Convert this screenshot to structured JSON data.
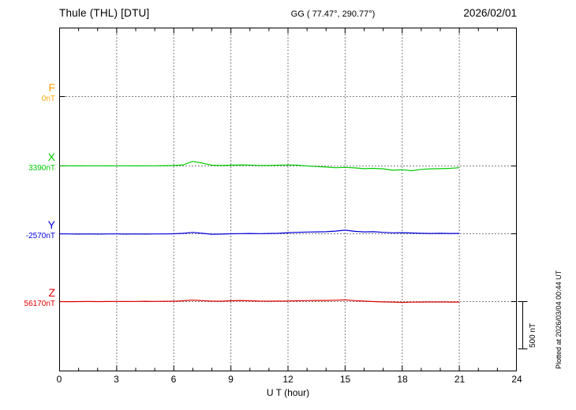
{
  "header": {
    "station": "Thule (THL)  [DTU]",
    "coords": "GG ( 77.47°, 290.77°)",
    "date": "2026/02/01"
  },
  "footer": {
    "plotted_note": "Plotted at 2026/03/04 00:44 UT"
  },
  "chart_data": {
    "type": "line",
    "title": "Thule (THL)  [DTU]",
    "xlabel": "U T (hour)",
    "x_range": [
      0,
      24
    ],
    "x_ticks": [
      0,
      3,
      6,
      9,
      12,
      15,
      18,
      21,
      24
    ],
    "grid": "dotted vertical at 3h steps, dotted horizontal at each component baseline",
    "scale": {
      "label": "500 nT",
      "nT": 500
    },
    "x": [
      0,
      0.5,
      1,
      1.5,
      2,
      2.5,
      3,
      3.5,
      4,
      4.5,
      5,
      5.5,
      6,
      6.5,
      7,
      7.5,
      8,
      8.5,
      9,
      9.5,
      10,
      10.5,
      11,
      11.5,
      12,
      12.5,
      13,
      13.5,
      14,
      14.5,
      15,
      15.5,
      16,
      16.5,
      17,
      17.5,
      18,
      18.5,
      19,
      19.5,
      20,
      20.5,
      21
    ],
    "series": [
      {
        "name": "F",
        "color": "#FFA500",
        "baseline_nT": 0,
        "baseline_label": "0nT",
        "values": []
      },
      {
        "name": "X",
        "color": "#00CC00",
        "baseline_nT": 3390,
        "baseline_label": "3390nT",
        "values": [
          2,
          2,
          1,
          2,
          2,
          1,
          2,
          2,
          1,
          2,
          2,
          3,
          5,
          12,
          48,
          30,
          8,
          5,
          8,
          12,
          10,
          6,
          5,
          8,
          10,
          8,
          0,
          -6,
          -12,
          -18,
          -15,
          -20,
          -28,
          -25,
          -30,
          -45,
          -40,
          -50,
          -36,
          -30,
          -28,
          -25,
          -18
        ]
      },
      {
        "name": "Y",
        "color": "#0000DD",
        "baseline_nT": -2570,
        "baseline_label": "-2570nT",
        "values": [
          0,
          -2,
          -3,
          -2,
          -3,
          -2,
          -2,
          -3,
          -2,
          -3,
          -2,
          -2,
          0,
          5,
          14,
          5,
          -5,
          -3,
          0,
          2,
          3,
          2,
          3,
          5,
          12,
          15,
          18,
          20,
          22,
          28,
          38,
          26,
          20,
          22,
          15,
          10,
          12,
          8,
          5,
          3,
          5,
          3,
          4
        ]
      },
      {
        "name": "Z",
        "color": "#DD0000",
        "baseline_nT": 56170,
        "baseline_label": "56170nT",
        "values": [
          0,
          -1,
          0,
          1,
          0,
          1,
          2,
          1,
          2,
          3,
          2,
          3,
          3,
          8,
          15,
          10,
          4,
          4,
          8,
          12,
          8,
          5,
          4,
          5,
          6,
          8,
          10,
          12,
          12,
          14,
          18,
          10,
          5,
          0,
          -3,
          -5,
          -8,
          -6,
          -5,
          -4,
          -4,
          -5,
          -5
        ]
      }
    ]
  }
}
